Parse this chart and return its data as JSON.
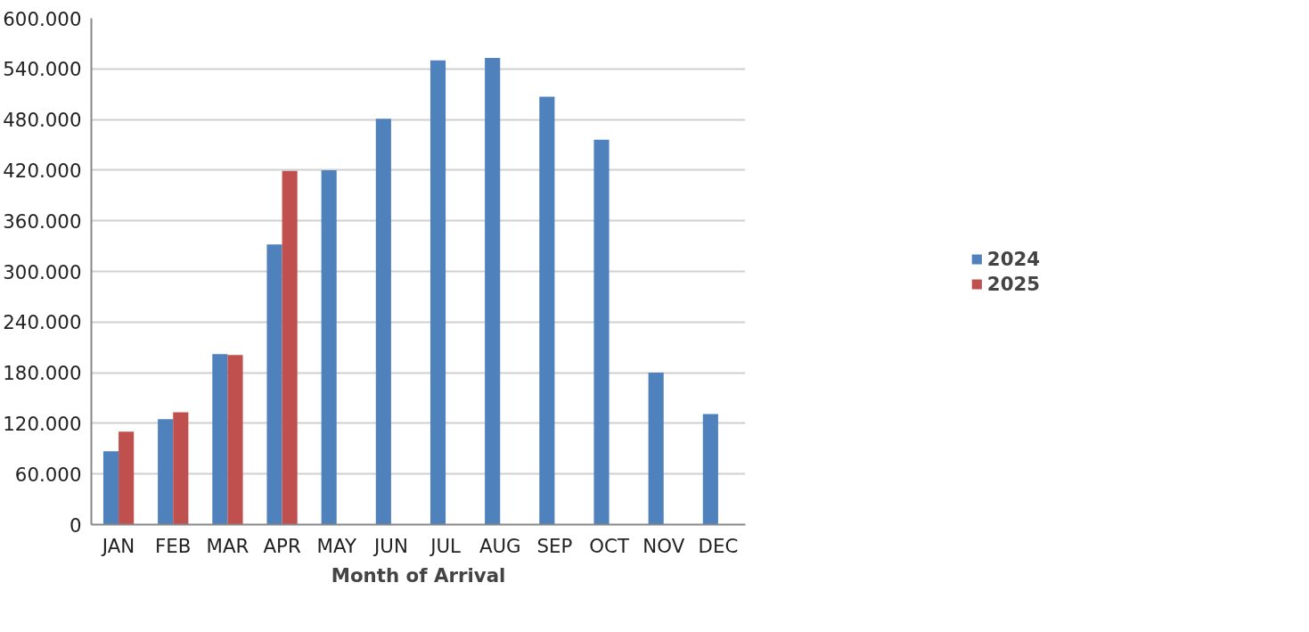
{
  "chart_data": {
    "type": "bar",
    "xlabel": "Month of Arrival",
    "categories": [
      "JAN",
      "FEB",
      "MAR",
      "APR",
      "MAY",
      "JUN",
      "JUL",
      "AUG",
      "SEP",
      "OCT",
      "NOV",
      "DEC"
    ],
    "series": [
      {
        "name": "2024",
        "color": "#4f81bd",
        "values": [
          87000,
          125000,
          202000,
          332000,
          420000,
          481000,
          550000,
          553000,
          507000,
          456000,
          180000,
          131000
        ]
      },
      {
        "name": "2025",
        "color": "#c0504d",
        "values": [
          110000,
          133000,
          201000,
          419000,
          null,
          null,
          null,
          null,
          null,
          null,
          null,
          null
        ]
      }
    ],
    "ylim": [
      0,
      600000
    ],
    "yticks": [
      0,
      {
        "value": 60000,
        "label": "60.000"
      },
      {
        "value": 120000,
        "label": "120.000"
      },
      {
        "value": 180000,
        "label": "180.000"
      },
      {
        "value": 240000,
        "label": "240.000"
      },
      {
        "value": 300000,
        "label": "300.000"
      },
      {
        "value": 360000,
        "label": "360.000"
      },
      {
        "value": 420000,
        "label": "420.000"
      },
      {
        "value": 480000,
        "label": "480.000"
      },
      {
        "value": 540000,
        "label": "540.000"
      },
      {
        "value": 600000,
        "label": "600.000"
      }
    ],
    "grid": "y",
    "legend": "right"
  }
}
